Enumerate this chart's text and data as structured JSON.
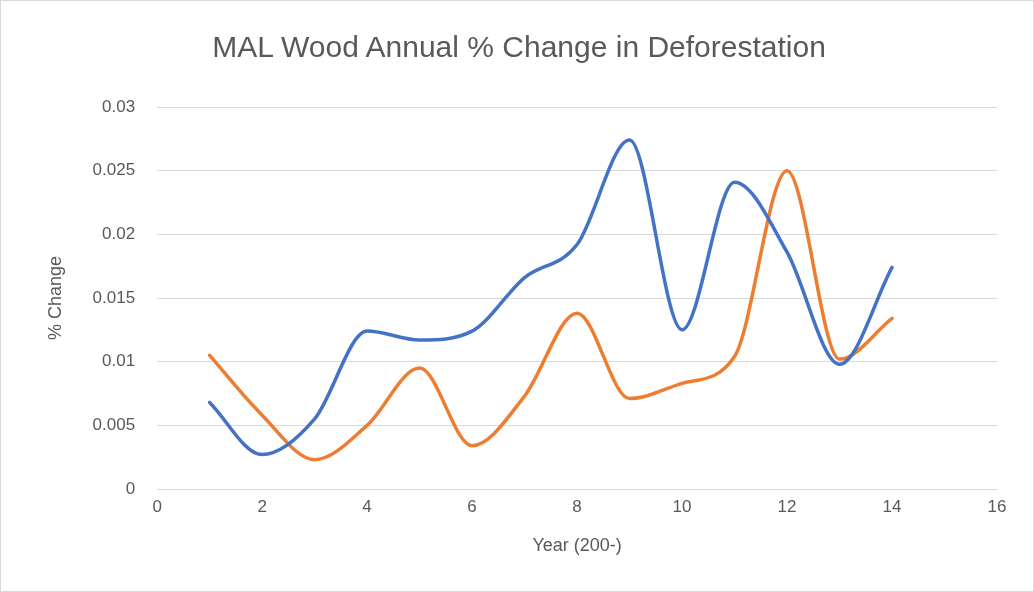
{
  "chart_data": {
    "type": "line",
    "title": "MAL Wood Annual % Change in Deforestation",
    "xlabel": "Year (200-)",
    "ylabel": "% Change",
    "x": [
      1,
      2,
      3,
      4,
      5,
      6,
      7,
      8,
      9,
      10,
      11,
      12,
      13,
      14
    ],
    "series": [
      {
        "color": "#4472c4",
        "values": [
          0.0068,
          0.0027,
          0.0055,
          0.0124,
          0.0117,
          0.0124,
          0.0166,
          0.0192,
          0.0274,
          0.0125,
          0.0241,
          0.0186,
          0.0098,
          0.0174
        ]
      },
      {
        "color": "#ed7d31",
        "values": [
          0.0105,
          0.0058,
          0.0023,
          0.005,
          0.0095,
          0.0034,
          0.0073,
          0.0138,
          0.0071,
          0.0083,
          0.0104,
          0.025,
          0.0102,
          0.0134
        ]
      }
    ],
    "xlim": [
      0,
      16
    ],
    "xticks": [
      0,
      2,
      4,
      6,
      8,
      10,
      12,
      14,
      16
    ],
    "ylim": [
      0,
      0.03
    ],
    "yticks": [
      0,
      0.005,
      0.01,
      0.015,
      0.02,
      0.025,
      0.03
    ],
    "grid": "y",
    "legend": false,
    "marker": "none",
    "line_style": "solid"
  }
}
